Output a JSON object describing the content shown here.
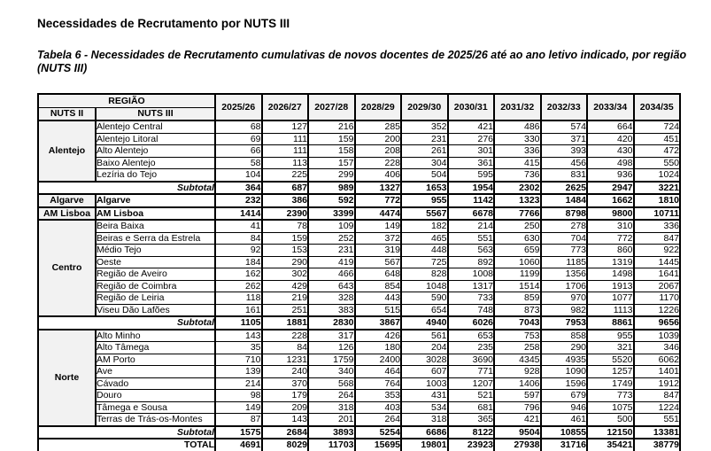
{
  "page": {
    "title": "Necessidades de Recrutamento por NUTS III",
    "caption": "Tabela 6 - Necessidades de Recrutamento cumulativas de novos docentes de 2025/26 até ao ano letivo indicado, por região (NUTS III)"
  },
  "colors": {
    "page_bg": "#ffffff",
    "header_bg": "#f2f2f2",
    "border": "#000000",
    "text": "#000000"
  },
  "table": {
    "header": {
      "region_label": "REGIÃO",
      "nuts2_label": "NUTS II",
      "nuts3_label": "NUTS III",
      "years": [
        "2025/26",
        "2026/27",
        "2027/28",
        "2028/29",
        "2029/30",
        "2030/31",
        "2031/32",
        "2032/33",
        "2033/34",
        "2034/35"
      ]
    },
    "subtotal_label": "Subtotal",
    "groups": [
      {
        "nuts2": "Alentejo",
        "bold_rows": false,
        "rows": [
          {
            "name": "Alentejo Central",
            "values": [
              68,
              127,
              216,
              285,
              352,
              421,
              486,
              574,
              664,
              724
            ]
          },
          {
            "name": "Alentejo Litoral",
            "values": [
              69,
              111,
              159,
              200,
              231,
              276,
              330,
              371,
              420,
              451
            ]
          },
          {
            "name": "Alto Alentejo",
            "values": [
              66,
              111,
              158,
              208,
              261,
              301,
              336,
              393,
              430,
              472
            ]
          },
          {
            "name": "Baixo Alentejo",
            "values": [
              58,
              113,
              157,
              228,
              304,
              361,
              415,
              456,
              498,
              550
            ]
          },
          {
            "name": "Lezíria do Tejo",
            "values": [
              104,
              225,
              299,
              406,
              504,
              595,
              736,
              831,
              936,
              1024
            ]
          }
        ],
        "subtotal": [
          364,
          687,
          989,
          1327,
          1653,
          1954,
          2302,
          2625,
          2947,
          3221
        ]
      },
      {
        "nuts2": "Algarve",
        "bold_rows": true,
        "rows": [
          {
            "name": "Algarve",
            "values": [
              232,
              386,
              592,
              772,
              955,
              1142,
              1323,
              1484,
              1662,
              1810
            ]
          }
        ],
        "subtotal": null
      },
      {
        "nuts2": "AM Lisboa",
        "bold_rows": true,
        "rows": [
          {
            "name": "AM Lisboa",
            "values": [
              1414,
              2390,
              3399,
              4474,
              5567,
              6678,
              7766,
              8798,
              9800,
              10711
            ]
          }
        ],
        "subtotal": null
      },
      {
        "nuts2": "Centro",
        "bold_rows": false,
        "rows": [
          {
            "name": "Beira Baixa",
            "values": [
              41,
              78,
              109,
              149,
              182,
              214,
              250,
              278,
              310,
              336
            ]
          },
          {
            "name": "Beiras e Serra da Estrela",
            "values": [
              84,
              159,
              252,
              372,
              465,
              551,
              630,
              704,
              772,
              847
            ]
          },
          {
            "name": "Médio Tejo",
            "values": [
              92,
              153,
              231,
              319,
              448,
              563,
              659,
              773,
              860,
              922
            ]
          },
          {
            "name": "Oeste",
            "values": [
              184,
              290,
              419,
              567,
              725,
              892,
              1060,
              1185,
              1319,
              1445
            ]
          },
          {
            "name": "Região de Aveiro",
            "values": [
              162,
              302,
              466,
              648,
              828,
              1008,
              1199,
              1356,
              1498,
              1641
            ]
          },
          {
            "name": "Região de Coimbra",
            "values": [
              262,
              429,
              643,
              854,
              1048,
              1317,
              1514,
              1706,
              1913,
              2067
            ]
          },
          {
            "name": "Região de Leiria",
            "values": [
              118,
              219,
              328,
              443,
              590,
              733,
              859,
              970,
              1077,
              1170
            ]
          },
          {
            "name": "Viseu Dão Lafões",
            "values": [
              161,
              251,
              383,
              515,
              654,
              748,
              873,
              982,
              1113,
              1226
            ]
          }
        ],
        "subtotal": [
          1105,
          1881,
          2830,
          3867,
          4940,
          6026,
          7043,
          7953,
          8861,
          9656
        ]
      },
      {
        "nuts2": "Norte",
        "bold_rows": false,
        "rows": [
          {
            "name": "Alto Minho",
            "values": [
              143,
              228,
              317,
              426,
              561,
              653,
              753,
              858,
              955,
              1039
            ]
          },
          {
            "name": "Alto Tâmega",
            "values": [
              35,
              84,
              126,
              180,
              204,
              235,
              258,
              290,
              321,
              346
            ]
          },
          {
            "name": "AM Porto",
            "values": [
              710,
              1231,
              1759,
              2400,
              3028,
              3690,
              4345,
              4935,
              5520,
              6062
            ]
          },
          {
            "name": "Ave",
            "values": [
              139,
              240,
              340,
              464,
              607,
              771,
              928,
              1090,
              1257,
              1401
            ]
          },
          {
            "name": "Cávado",
            "values": [
              214,
              370,
              568,
              764,
              1003,
              1207,
              1406,
              1596,
              1749,
              1912
            ]
          },
          {
            "name": "Douro",
            "values": [
              98,
              179,
              264,
              353,
              431,
              521,
              597,
              679,
              773,
              847
            ]
          },
          {
            "name": "Tâmega e Sousa",
            "values": [
              149,
              209,
              318,
              403,
              534,
              681,
              796,
              946,
              1075,
              1224
            ]
          },
          {
            "name": "Terras de Trás-os-Montes",
            "values": [
              87,
              143,
              201,
              264,
              318,
              365,
              421,
              461,
              500,
              551
            ]
          }
        ],
        "subtotal": [
          1575,
          2684,
          3893,
          5254,
          6686,
          8122,
          9504,
          10855,
          12150,
          13381
        ]
      }
    ],
    "total": {
      "label": "TOTAL",
      "values": [
        4691,
        8029,
        11703,
        15695,
        19801,
        23923,
        27938,
        31716,
        35421,
        38779
      ]
    }
  }
}
